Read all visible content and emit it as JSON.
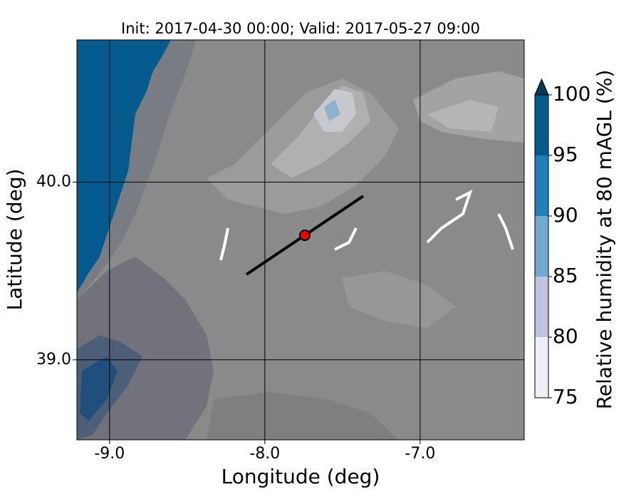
{
  "chart_data": {
    "type": "map",
    "title": "Init: 2017-04-30 00:00; Valid: 2017-05-27 09:00",
    "x_label": "Longitude (deg)",
    "y_label": "Latitude (deg)",
    "xlim": [
      -9.21,
      -6.33
    ],
    "ylim": [
      38.55,
      40.8
    ],
    "xticks": [
      {
        "value": -9,
        "label": "-9.0"
      },
      {
        "value": -8,
        "label": "-8.0"
      },
      {
        "value": -7,
        "label": "-7.0"
      }
    ],
    "yticks": [
      {
        "value": 39,
        "label": "39.0"
      },
      {
        "value": 40,
        "label": "40.0"
      }
    ],
    "grid": true,
    "colorbar": {
      "label": "Relative humidity at 80 mAGL (%)",
      "lim": [
        75,
        100
      ],
      "ticks": [
        75,
        80,
        85,
        90,
        95,
        100
      ],
      "colors": [
        "#efedf5",
        "#bfc5e0",
        "#74a9cf",
        "#1f7fb8",
        "#045a8d"
      ],
      "extend_color": "#023858"
    }
  }
}
